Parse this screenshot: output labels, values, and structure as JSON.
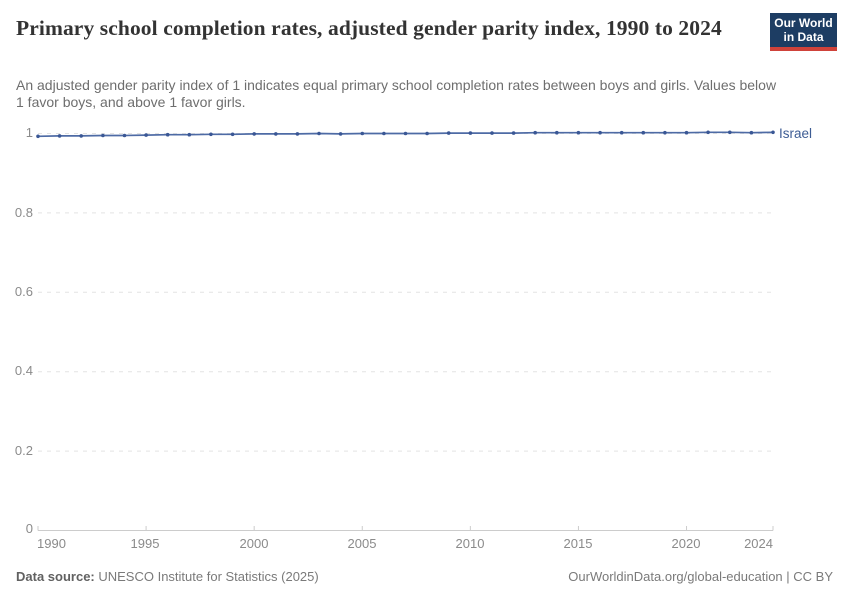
{
  "header": {
    "title": "Primary school completion rates, adjusted gender parity index, 1990 to 2024",
    "subtitle": "An adjusted gender parity index of 1 indicates equal primary school completion rates between boys and girls. Values below 1 favor boys, and above 1 favor girls.",
    "logo": {
      "line1": "Our World",
      "line2": "in Data"
    }
  },
  "chart_data": {
    "type": "line",
    "title": "Primary school completion rates, adjusted gender parity index, 1990 to 2024",
    "x": [
      1990,
      1991,
      1992,
      1993,
      1994,
      1995,
      1996,
      1997,
      1998,
      1999,
      2000,
      2001,
      2002,
      2003,
      2004,
      2005,
      2006,
      2007,
      2008,
      2009,
      2010,
      2011,
      2012,
      2013,
      2014,
      2015,
      2016,
      2017,
      2018,
      2019,
      2020,
      2021,
      2022,
      2023,
      2024
    ],
    "series": [
      {
        "name": "Israel",
        "color": "#4e6ba5",
        "marker_color": "#3a5795",
        "values": [
          0.993,
          0.994,
          0.994,
          0.995,
          0.995,
          0.996,
          0.997,
          0.997,
          0.998,
          0.998,
          0.999,
          0.999,
          0.999,
          1.0,
          0.999,
          1.0,
          1.0,
          1.0,
          1.0,
          1.001,
          1.001,
          1.001,
          1.001,
          1.002,
          1.002,
          1.002,
          1.002,
          1.002,
          1.002,
          1.002,
          1.002,
          1.003,
          1.003,
          1.002,
          1.003
        ]
      }
    ],
    "xlabel": "",
    "ylabel": "",
    "xlim": [
      1990,
      2024
    ],
    "ylim": [
      0,
      1
    ],
    "yticks": [
      0,
      0.2,
      0.4,
      0.6,
      0.8,
      1
    ],
    "ytick_labels": [
      "0",
      "0.2",
      "0.4",
      "0.6",
      "0.8",
      "1"
    ],
    "xtick_labels": [
      "1990",
      "1995",
      "2000",
      "2005",
      "2010",
      "2015",
      "2020",
      "2024"
    ],
    "grid": "horizontal-dashed",
    "legend_position": "end-of-line-label",
    "grid_color": "#e3e3e3",
    "axis_color": "#cccccc"
  },
  "footer": {
    "datasource_label": "Data source:",
    "datasource_value": " UNESCO Institute for Statistics (2025)",
    "credit": "OurWorldinData.org/global-education | CC BY"
  }
}
